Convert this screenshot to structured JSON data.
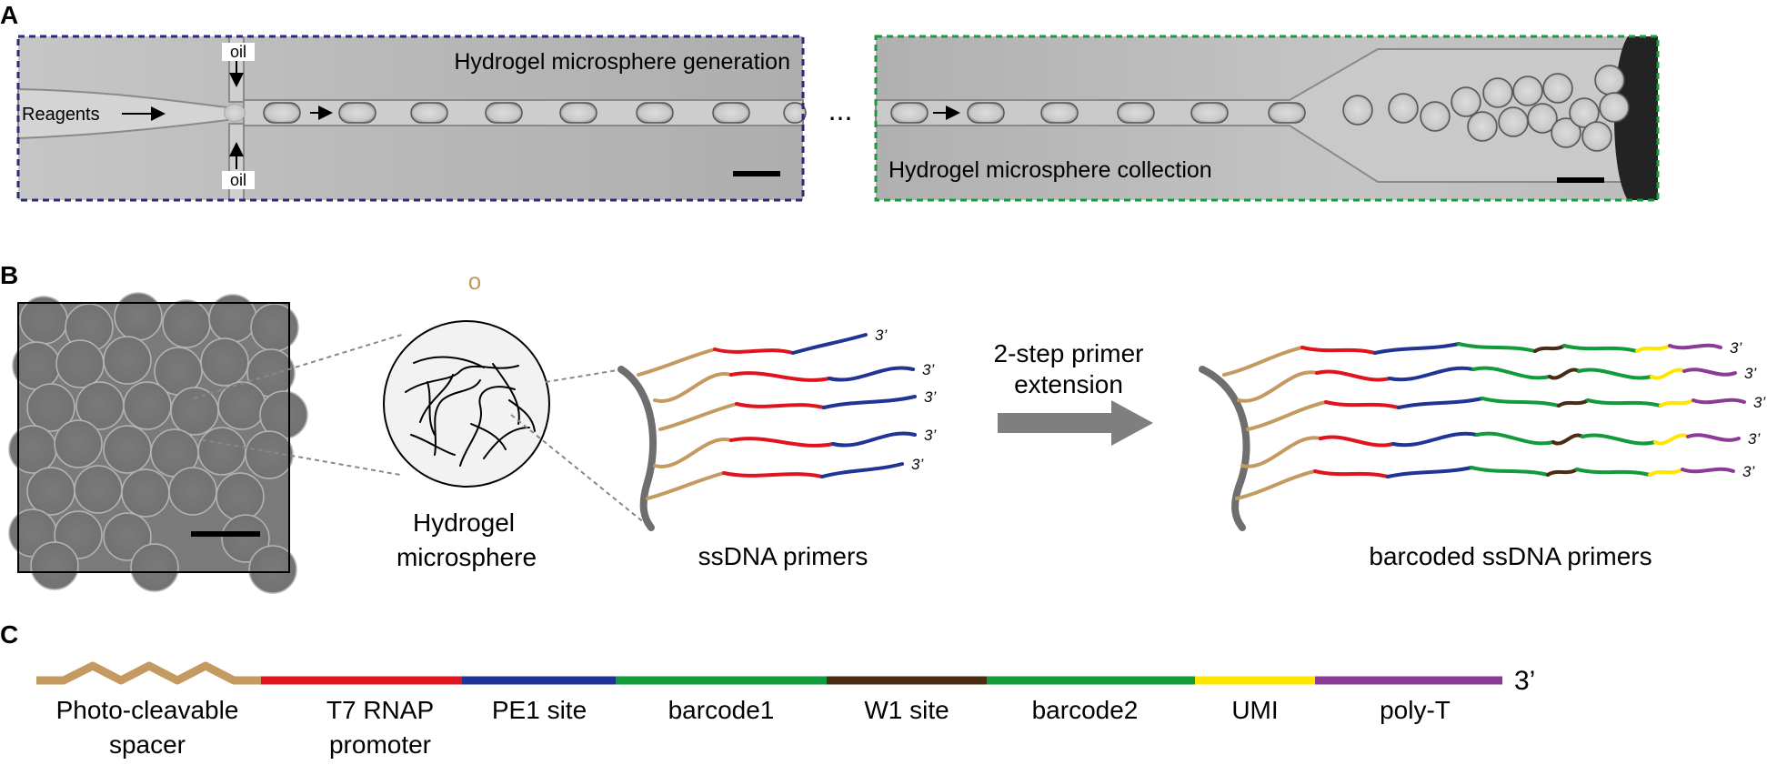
{
  "panels": {
    "a": {
      "letter": "A",
      "generation_title": "Hydrogel microsphere generation",
      "collection_title": "Hydrogel microsphere collection",
      "oil_top": "oil",
      "oil_bottom": "oil",
      "reagents": "Reagents",
      "ellipsis": "..."
    },
    "b": {
      "letter": "B",
      "stray_mark": "o",
      "hydrogel_line1": "Hydrogel",
      "hydrogel_line2": "microsphere",
      "ssdna_label": "ssDNA primers",
      "step_line1": "2-step primer",
      "step_line2": "extension",
      "barcoded_label": "barcoded ssDNA primers",
      "three_prime": "3’"
    },
    "c": {
      "letter": "C",
      "three_prime": "3’",
      "segments": [
        {
          "line1": "Photo-cleavable",
          "line2": "spacer",
          "color": "#c49a61"
        },
        {
          "line1": "T7 RNAP",
          "line2": "promoter",
          "color": "#e0141e"
        },
        {
          "line1": "PE1 site",
          "line2": "",
          "color": "#1f3494"
        },
        {
          "line1": "barcode1",
          "line2": "",
          "color": "#129b3a"
        },
        {
          "line1": "W1 site",
          "line2": "",
          "color": "#4a2c14"
        },
        {
          "line1": "barcode2",
          "line2": "",
          "color": "#129b3a"
        },
        {
          "line1": "UMI",
          "line2": "",
          "color": "#ffe600"
        },
        {
          "line1": "poly-T",
          "line2": "",
          "color": "#8b3a96"
        }
      ]
    }
  },
  "colors": {
    "spacer": "#c49a61",
    "t7": "#e0141e",
    "pe1": "#1f3494",
    "barcode": "#129b3a",
    "w1": "#4a2c14",
    "umi": "#ffe600",
    "polyt": "#8b3a96",
    "bead": "#707070",
    "box_blue": "#2a2a80",
    "box_green": "#1a9a3a",
    "arrow": "#7f7f7f"
  }
}
